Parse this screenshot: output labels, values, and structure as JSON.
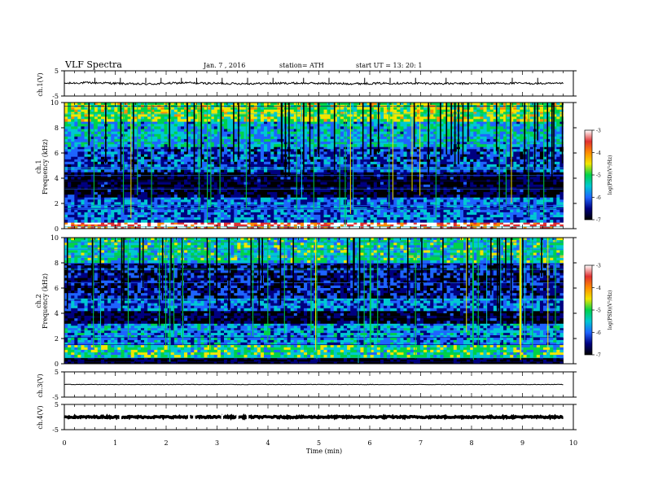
{
  "header": {
    "title": "VLF  Spectra",
    "date": "Jan.  7  , 2016",
    "station": "station= ATH",
    "start": "start  UT  =    13: 20: 1"
  },
  "colorbar": {
    "label": "log(PSD)(V²/Hz)",
    "ticks": [
      "-3",
      "-4",
      "-5",
      "-6",
      "-7"
    ],
    "colors": [
      "#ffffff",
      "#e03030",
      "#ff8c00",
      "#f2e600",
      "#00d24a",
      "#00c8d2",
      "#1e64ff",
      "#000080",
      "#000000"
    ]
  },
  "chart_data": [
    {
      "type": "line",
      "panel": "ch.1",
      "ylabel": "ch.1(V)",
      "yticks": [
        "5",
        "-5"
      ],
      "ylim": [
        -5,
        5
      ],
      "xlim": [
        0,
        10
      ],
      "series": [
        {
          "x_range": [
            0,
            9.8
          ],
          "mean": 0,
          "noise_amplitude": 0.4,
          "spikes": [
            0.6,
            1.1,
            1.6,
            1.9,
            2.3,
            2.6,
            3.1,
            3.6,
            4.1,
            4.7,
            5.2,
            5.9,
            6.4,
            6.9,
            7.5,
            8.2,
            8.8,
            9.3
          ]
        }
      ]
    },
    {
      "type": "heatmap",
      "panel": "ch.1",
      "ylabel": "Frequency (kHz)",
      "channel_label": "ch.1",
      "yticks": [
        "10",
        "8",
        "6",
        "4",
        "2",
        "0"
      ],
      "ylim": [
        0,
        10
      ],
      "xlim": [
        0,
        10
      ],
      "x_range": [
        0,
        9.8
      ],
      "color_scale": "log(PSD)(V²/Hz)",
      "zlim": [
        -7,
        -3
      ],
      "bands_khz": [
        {
          "from": 0,
          "to": 0.5,
          "level": -3.3
        },
        {
          "from": 0.5,
          "to": 2.5,
          "level": -6.0
        },
        {
          "from": 2.5,
          "to": 4.5,
          "level": -6.9
        },
        {
          "from": 4.5,
          "to": 6.5,
          "level": -6.2
        },
        {
          "from": 6.5,
          "to": 8.5,
          "level": -5.6
        },
        {
          "from": 8.5,
          "to": 10,
          "level": -4.8
        }
      ]
    },
    {
      "type": "heatmap",
      "panel": "ch.2",
      "ylabel": "Frequency (kHz)",
      "channel_label": "ch.2",
      "yticks": [
        "10",
        "8",
        "6",
        "4",
        "2",
        "0"
      ],
      "ylim": [
        0,
        10
      ],
      "xlim": [
        0,
        10
      ],
      "x_range": [
        0,
        9.8
      ],
      "color_scale": "log(PSD)(V²/Hz)",
      "zlim": [
        -7,
        -3
      ],
      "bands_khz": [
        {
          "from": 0,
          "to": 0.5,
          "level": -7.0
        },
        {
          "from": 0.5,
          "to": 1.5,
          "level": -5.2
        },
        {
          "from": 1.5,
          "to": 3.2,
          "level": -5.8
        },
        {
          "from": 3.2,
          "to": 4.2,
          "level": -6.9
        },
        {
          "from": 4.2,
          "to": 5.2,
          "level": -6.0
        },
        {
          "from": 5.2,
          "to": 8.0,
          "level": -6.5
        },
        {
          "from": 8.0,
          "to": 10,
          "level": -5.3
        }
      ]
    },
    {
      "type": "line",
      "panel": "ch.3",
      "ylabel": "ch.3(V)",
      "yticks": [
        "5",
        "-5"
      ],
      "ylim": [
        -5,
        5
      ],
      "xlim": [
        0,
        10
      ],
      "series": [
        {
          "x_range": [
            0,
            9.8
          ],
          "mean": 0,
          "noise_amplitude": 0.1
        }
      ]
    },
    {
      "type": "line",
      "panel": "ch.4",
      "ylabel": "ch.4(V)",
      "yticks": [
        "5",
        "-5"
      ],
      "ylim": [
        -5,
        5
      ],
      "xlim": [
        0,
        10
      ],
      "series": [
        {
          "x_range": [
            0,
            9.8
          ],
          "mean": 0,
          "noise_amplitude": 0.3,
          "gaps": [
            1.1,
            2.45,
            2.55,
            3.1,
            3.4,
            3.6
          ]
        }
      ]
    }
  ],
  "xaxis": {
    "label": "Time  (min)",
    "ticks": [
      "0",
      "1",
      "2",
      "3",
      "4",
      "5",
      "6",
      "7",
      "8",
      "9",
      "10"
    ]
  }
}
